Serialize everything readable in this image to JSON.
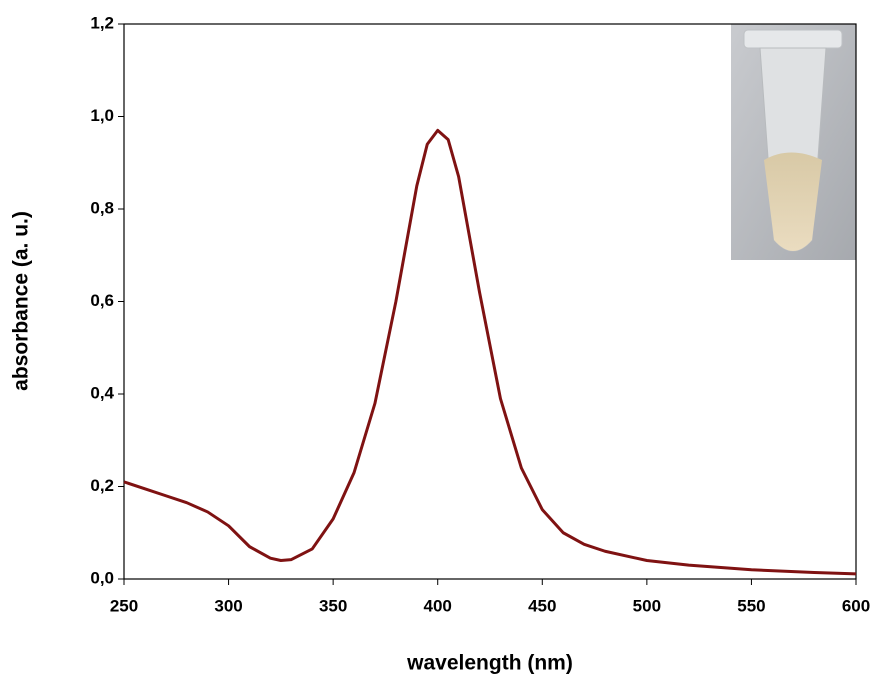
{
  "chart_data": {
    "type": "line",
    "x_label": "wavelength (nm)",
    "y_label": "absorbance (a. u.)",
    "x": [
      250,
      260,
      270,
      280,
      290,
      300,
      310,
      320,
      325,
      330,
      340,
      350,
      360,
      370,
      380,
      390,
      395,
      400,
      405,
      410,
      420,
      430,
      440,
      450,
      460,
      470,
      480,
      500,
      520,
      550,
      580,
      600
    ],
    "series": [
      {
        "color": "#7f1212",
        "values": [
          0.21,
          0.195,
          0.18,
          0.165,
          0.145,
          0.115,
          0.07,
          0.045,
          0.04,
          0.042,
          0.065,
          0.13,
          0.23,
          0.38,
          0.6,
          0.85,
          0.94,
          0.97,
          0.95,
          0.87,
          0.62,
          0.39,
          0.24,
          0.15,
          0.1,
          0.075,
          0.06,
          0.04,
          0.03,
          0.02,
          0.014,
          0.011
        ]
      }
    ],
    "xlim": [
      250,
      600
    ],
    "ylim": [
      0,
      1.2
    ],
    "xticks": [
      250,
      300,
      350,
      400,
      450,
      500,
      550,
      600
    ],
    "yticks": [
      {
        "value": 0,
        "label": "0,0"
      },
      {
        "value": 0.2,
        "label": "0,2"
      },
      {
        "value": 0.4,
        "label": "0,4"
      },
      {
        "value": 0.6,
        "label": "0,6"
      },
      {
        "value": 0.8,
        "label": "0,8"
      },
      {
        "value": 1.0,
        "label": "1,0"
      },
      {
        "value": 1.2,
        "label": "1,2"
      }
    ],
    "grid": false
  }
}
